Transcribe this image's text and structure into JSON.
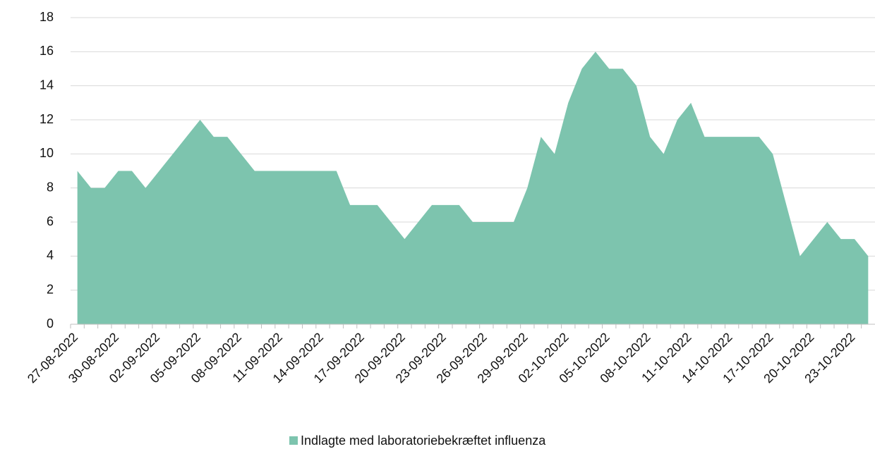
{
  "chart_data": {
    "type": "area",
    "color": "#7dc4ae",
    "grid": true,
    "ylim": [
      0,
      18
    ],
    "yticks": [
      0,
      2,
      4,
      6,
      8,
      10,
      12,
      14,
      16,
      18
    ],
    "categories": [
      "27-08-2022",
      null,
      null,
      "30-08-2022",
      null,
      null,
      "02-09-2022",
      null,
      null,
      "05-09-2022",
      null,
      null,
      "08-09-2022",
      null,
      null,
      "11-09-2022",
      null,
      null,
      "14-09-2022",
      null,
      null,
      "17-09-2022",
      null,
      null,
      "20-09-2022",
      null,
      null,
      "23-09-2022",
      null,
      null,
      "26-09-2022",
      null,
      null,
      "29-09-2022",
      null,
      null,
      "02-10-2022",
      null,
      null,
      "05-10-2022",
      null,
      null,
      "08-10-2022",
      null,
      null,
      "11-10-2022",
      null,
      null,
      "14-10-2022",
      null,
      null,
      "17-10-2022",
      null,
      null,
      "20-10-2022",
      null,
      null,
      "23-10-2022",
      null
    ],
    "series": [
      {
        "name": "Indlagte med laboratoriebekræftet influenza",
        "color": "#7dc4ae",
        "values": [
          9,
          8,
          8,
          9,
          9,
          8,
          9,
          10,
          11,
          12,
          11,
          11,
          10,
          9,
          9,
          9,
          9,
          9,
          9,
          9,
          7,
          7,
          7,
          6,
          5,
          6,
          7,
          7,
          7,
          6,
          6,
          6,
          6,
          8,
          11,
          10,
          13,
          15,
          16,
          15,
          15,
          14,
          11,
          10,
          12,
          13,
          11,
          11,
          11,
          11,
          11,
          10,
          7,
          4,
          5,
          6,
          5,
          5,
          4
        ]
      }
    ]
  }
}
